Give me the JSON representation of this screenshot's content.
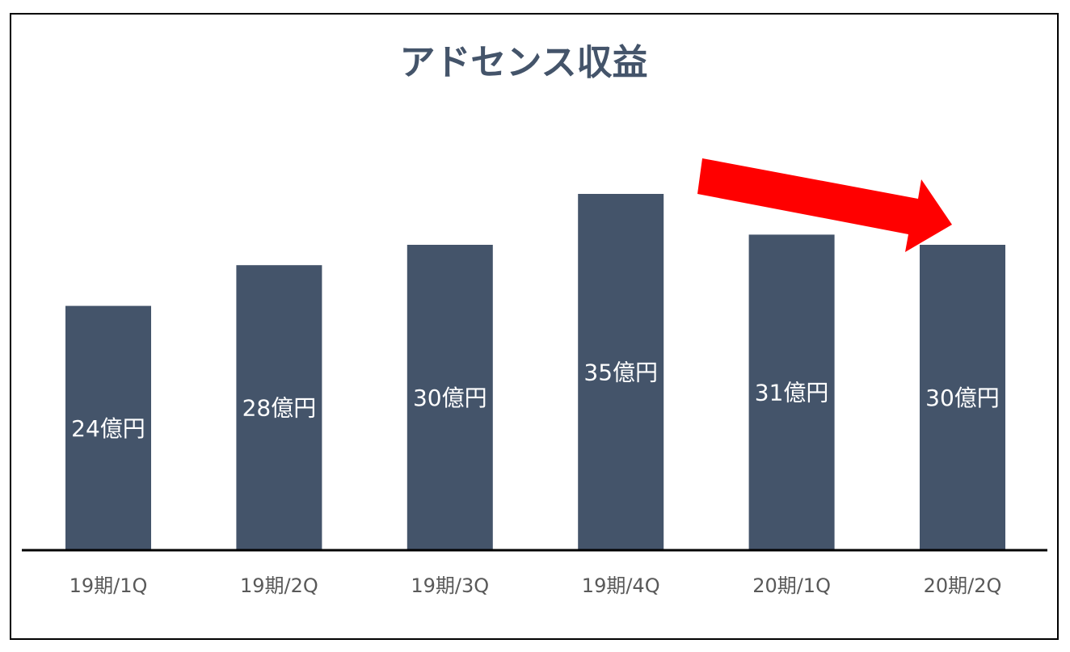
{
  "chart_data": {
    "type": "bar",
    "title": "アドセンス収益",
    "categories": [
      "19期/1Q",
      "19期/2Q",
      "19期/3Q",
      "19期/4Q",
      "20期/1Q",
      "20期/2Q"
    ],
    "values": [
      24,
      28,
      30,
      35,
      31,
      30
    ],
    "data_labels": [
      "24億円",
      "28億円",
      "30億円",
      "35億円",
      "31億円",
      "30億円"
    ],
    "unit": "億円",
    "xlabel": "",
    "ylabel": "",
    "ylim": [
      0,
      35
    ],
    "grid": false,
    "legend": "none",
    "annotations": [
      {
        "type": "arrow",
        "shape": "block-arrow",
        "direction": "down-right",
        "from_category": "19期/4Q",
        "to_category": "20期/2Q",
        "color": "#ff0000"
      }
    ]
  },
  "colors": {
    "bar": "#44546a",
    "title": "#44546a",
    "data_label": "#ffffff",
    "tick_label": "#595959",
    "axis": "#000000",
    "arrow": "#ff0000",
    "frame": "#000000"
  }
}
